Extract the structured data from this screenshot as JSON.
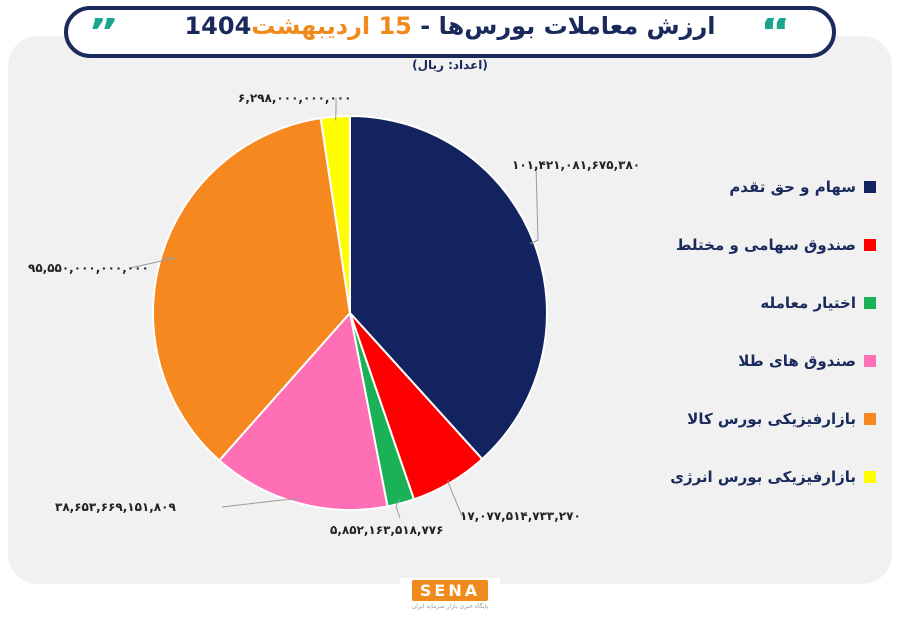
{
  "header": {
    "title_main": "ارزش معاملات بورس‌ها - ",
    "title_date_prefix": "15",
    "title_date_rest": " اردیبهشت",
    "title_year": "1404",
    "subtitle": "(اعداد: ریال)"
  },
  "brand": {
    "name": "SENA",
    "tagline": "پایگاه خبری بازار سرمایه ایران"
  },
  "chart_data": {
    "type": "pie",
    "title": "ارزش معاملات بورس‌ها - 15 اردیبهشت 1404",
    "unit": "ریال",
    "legend_position": "right",
    "slices": [
      {
        "name": "سهام و حق تقدم",
        "value": 101421081675380,
        "label": "۱۰۱,۴۲۱,۰۸۱,۶۷۵,۳۸۰",
        "color": "#13235f"
      },
      {
        "name": "صندوق سهامی و مختلط",
        "value": 17077514733270,
        "label": "۱۷,۰۷۷,۵۱۴,۷۳۳,۲۷۰",
        "color": "#ff0000"
      },
      {
        "name": "اختیار معامله",
        "value": 5852163518776,
        "label": "۵,۸۵۲,۱۶۳,۵۱۸,۷۷۶",
        "color": "#1bb257"
      },
      {
        "name": "صندوق های طلا",
        "value": 38653669151809,
        "label": "۳۸,۶۵۳,۶۶۹,۱۵۱,۸۰۹",
        "color": "#ff6fb6"
      },
      {
        "name": "بازارفیزیکی بورس کالا",
        "value": 95550000000000,
        "label": "۹۵,۵۵۰,۰۰۰,۰۰۰,۰۰۰",
        "color": "#f5891f"
      },
      {
        "name": "بازارفیزیکی بورس انرژی",
        "value": 6298000000000,
        "label": "۶,۲۹۸,۰۰۰,۰۰۰,۰۰۰",
        "color": "#ffff00"
      }
    ]
  }
}
